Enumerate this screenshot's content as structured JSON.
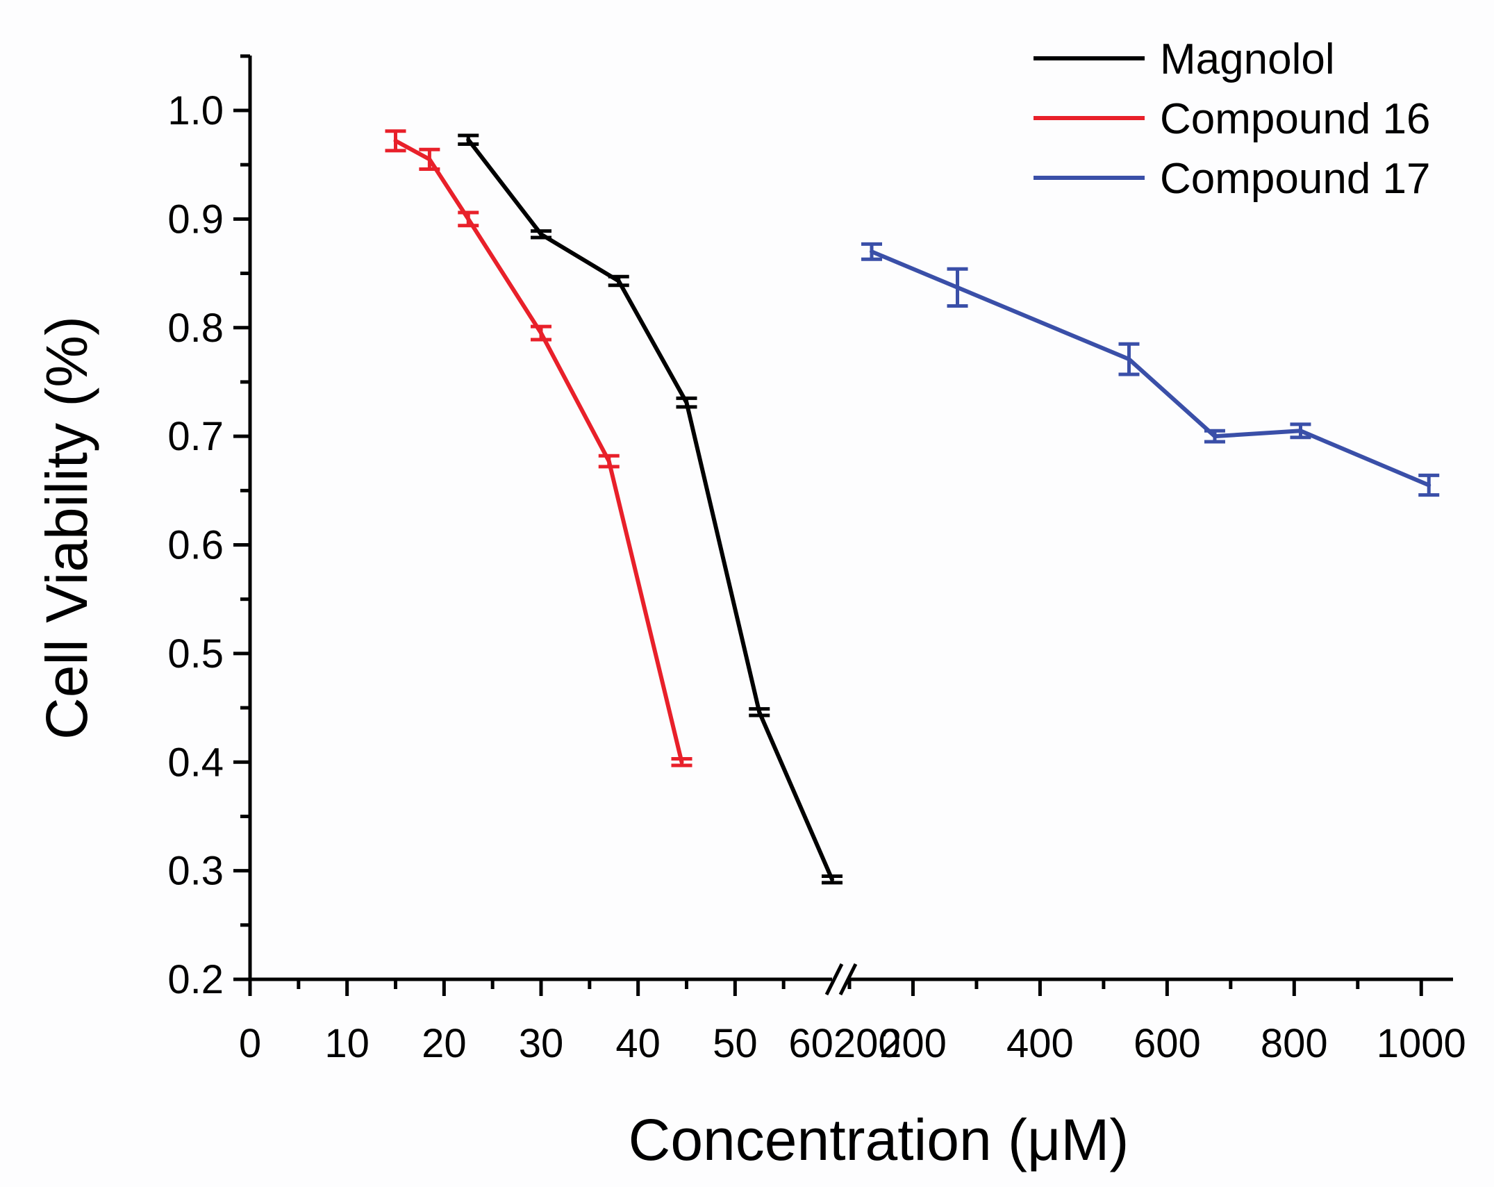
{
  "chart_data": {
    "type": "line",
    "title": "",
    "xlabel": "Concentration (μM)",
    "ylabel": "Cell Viability (%)",
    "ylim": [
      0.2,
      1.05
    ],
    "yticks": [
      "0.2",
      "0.3",
      "0.4",
      "0.5",
      "0.6",
      "0.7",
      "0.8",
      "0.9",
      "1.0"
    ],
    "x_segments": [
      {
        "range": [
          0,
          60
        ],
        "tick_values": [
          0,
          10,
          20,
          30,
          40,
          50
        ],
        "tick_labels": [
          "0",
          "10",
          "20",
          "30",
          "40",
          "50"
        ]
      },
      {
        "range": [
          100,
          1050
        ],
        "tick_values": [
          200,
          400,
          600,
          800,
          1000
        ],
        "tick_labels": [
          "200",
          "400",
          "600",
          "800",
          "1000"
        ]
      }
    ],
    "break_label": "60200",
    "axis_break": true,
    "legend": {
      "position": "top-right"
    },
    "series": [
      {
        "name": "Magnolol",
        "color": "#000000",
        "x": [
          22.5,
          30,
          38,
          45,
          52.5,
          60
        ],
        "y": [
          0.973,
          0.886,
          0.843,
          0.731,
          0.446,
          0.292
        ],
        "err": [
          0.004,
          0.003,
          0.004,
          0.004,
          0.003,
          0.003
        ]
      },
      {
        "name": "Compound 16",
        "color": "#e8202a",
        "x": [
          15,
          18.5,
          22.5,
          30,
          37,
          44.5
        ],
        "y": [
          0.972,
          0.955,
          0.9,
          0.795,
          0.677,
          0.4
        ],
        "err": [
          0.009,
          0.009,
          0.006,
          0.006,
          0.005,
          0.003
        ]
      },
      {
        "name": "Compound 17",
        "color": "#3a4fa8",
        "x": [
          135,
          270,
          540,
          675,
          810,
          1012
        ],
        "y": [
          0.87,
          0.837,
          0.771,
          0.7,
          0.705,
          0.655
        ],
        "err": [
          0.007,
          0.017,
          0.014,
          0.005,
          0.006,
          0.009
        ]
      }
    ]
  }
}
